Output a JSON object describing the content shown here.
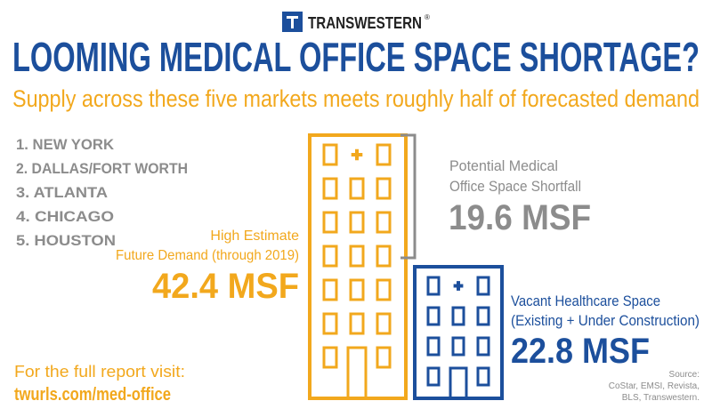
{
  "header": {
    "logo": "TRANSWESTERN",
    "registered": "®",
    "title": "LOOMING MEDICAL OFFICE SPACE SHORTAGE?",
    "subtitle": "Supply across these five markets meets roughly half of forecasted demand"
  },
  "markets": [
    "1. NEW YORK",
    "2. DALLAS/FORT WORTH",
    "3. ATLANTA",
    "4. CHICAGO",
    "5. HOUSTON"
  ],
  "demand": {
    "label": [
      "High Estimate",
      "Future Demand (through 2019)"
    ],
    "value": "42.4 MSF"
  },
  "shortfall": {
    "label": [
      "Potential Medical",
      "Office Space Shortfall"
    ],
    "value": "19.6 MSF"
  },
  "vacant": {
    "label": [
      "Vacant Healthcare Space",
      "(Existing + Under Construction)"
    ],
    "value": "22.8 MSF"
  },
  "footer": {
    "text": "For the full report visit:",
    "link": "twurls.com/med-office"
  },
  "source": [
    "Source:",
    "CoStar, EMSI, Revista,",
    "BLS, Transwestern."
  ]
}
